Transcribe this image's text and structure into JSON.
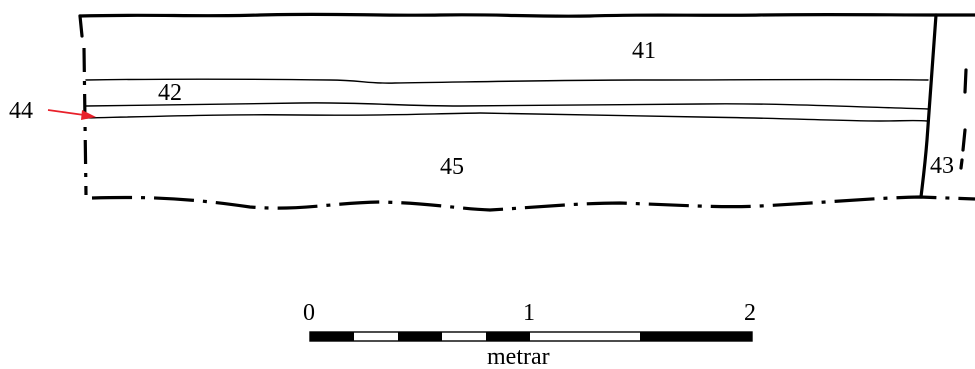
{
  "labels": {
    "layer_41": "41",
    "layer_42": "42",
    "layer_43": "43",
    "layer_44": "44",
    "layer_45": "45"
  },
  "scale_bar": {
    "tick_0": "0",
    "tick_1": "1",
    "tick_2": "2",
    "unit": "metrar"
  },
  "colors": {
    "line": "#000000",
    "arrow": "#e8202a",
    "background": "#ffffff"
  }
}
